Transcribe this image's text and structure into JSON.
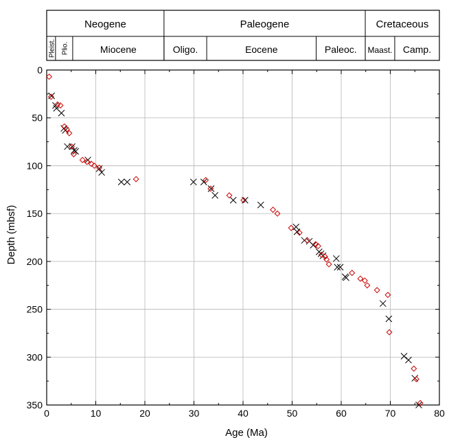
{
  "timescale": {
    "periods": [
      {
        "label": "Neogene",
        "start": 0,
        "end": 23.9
      },
      {
        "label": "Paleogene",
        "start": 23.9,
        "end": 64.9
      },
      {
        "label": "Cretaceous",
        "start": 64.9,
        "end": 80
      }
    ],
    "epochs": [
      {
        "label": "Pleist.",
        "start": 0,
        "end": 1.8,
        "rotated": true
      },
      {
        "label": "Plio.",
        "start": 1.8,
        "end": 5.3,
        "rotated": true
      },
      {
        "label": "Miocene",
        "start": 5.3,
        "end": 23.9,
        "rotated": false
      },
      {
        "label": "Oligo.",
        "start": 23.9,
        "end": 32.6,
        "rotated": false
      },
      {
        "label": "Eocene",
        "start": 32.6,
        "end": 54.9,
        "rotated": false
      },
      {
        "label": "Paleoc.",
        "start": 54.9,
        "end": 64.9,
        "rotated": false
      },
      {
        "label": "Maast.",
        "start": 64.9,
        "end": 70.9,
        "rotated": false
      },
      {
        "label": "Camp.",
        "start": 70.9,
        "end": 80,
        "rotated": false
      }
    ]
  },
  "chart_data": {
    "type": "scatter",
    "xlabel": "Age (Ma)",
    "ylabel": "Depth (mbsf)",
    "xlim": [
      0,
      80
    ],
    "ylim": [
      0,
      350
    ],
    "y_inverted": true,
    "xticks": [
      0,
      10,
      20,
      30,
      40,
      50,
      60,
      70,
      80
    ],
    "yticks": [
      0,
      50,
      100,
      150,
      200,
      250,
      300,
      350
    ],
    "grid": true,
    "series": [
      {
        "marker": "x",
        "color": "#000000",
        "points": [
          [
            1.0,
            27
          ],
          [
            1.8,
            37
          ],
          [
            2.0,
            40
          ],
          [
            3.0,
            45
          ],
          [
            3.5,
            61
          ],
          [
            3.8,
            63
          ],
          [
            4.2,
            80
          ],
          [
            5.2,
            80
          ],
          [
            5.6,
            84
          ],
          [
            5.9,
            85
          ],
          [
            8.4,
            94
          ],
          [
            10.7,
            103
          ],
          [
            11.2,
            107
          ],
          [
            15.2,
            117
          ],
          [
            16.4,
            117
          ],
          [
            29.9,
            117
          ],
          [
            32.0,
            117
          ],
          [
            33.5,
            124
          ],
          [
            34.3,
            131
          ],
          [
            38.0,
            136
          ],
          [
            40.4,
            136
          ],
          [
            43.6,
            141
          ],
          [
            50.8,
            164
          ],
          [
            51.0,
            169
          ],
          [
            52.5,
            178
          ],
          [
            53.5,
            179
          ],
          [
            54.3,
            183
          ],
          [
            55.5,
            190
          ],
          [
            55.9,
            192
          ],
          [
            56.3,
            194
          ],
          [
            59.0,
            197
          ],
          [
            59.2,
            206
          ],
          [
            59.8,
            206
          ],
          [
            60.8,
            216
          ],
          [
            61.0,
            217
          ],
          [
            68.5,
            244
          ],
          [
            69.7,
            260
          ],
          [
            72.8,
            299
          ],
          [
            73.7,
            303
          ],
          [
            75.0,
            322
          ],
          [
            75.8,
            350
          ]
        ]
      },
      {
        "marker": "diamond",
        "color": "#cc0000",
        "points": [
          [
            0.5,
            7
          ],
          [
            0.9,
            28
          ],
          [
            2.2,
            36
          ],
          [
            2.8,
            37
          ],
          [
            3.6,
            59
          ],
          [
            4.1,
            62
          ],
          [
            4.6,
            66
          ],
          [
            5.1,
            80
          ],
          [
            5.5,
            88
          ],
          [
            7.3,
            94
          ],
          [
            8.2,
            96
          ],
          [
            9.1,
            98
          ],
          [
            9.7,
            100
          ],
          [
            10.7,
            102
          ],
          [
            18.2,
            114
          ],
          [
            32.4,
            115
          ],
          [
            33.4,
            124
          ],
          [
            37.2,
            131
          ],
          [
            40.1,
            136
          ],
          [
            46.1,
            146
          ],
          [
            47.0,
            150
          ],
          [
            49.8,
            165
          ],
          [
            51.5,
            170
          ],
          [
            53.1,
            178
          ],
          [
            54.8,
            182
          ],
          [
            55.3,
            184
          ],
          [
            56.0,
            193
          ],
          [
            56.7,
            195
          ],
          [
            57.0,
            198
          ],
          [
            57.5,
            203
          ],
          [
            62.2,
            212
          ],
          [
            63.9,
            218
          ],
          [
            64.8,
            220
          ],
          [
            65.3,
            225
          ],
          [
            67.3,
            230
          ],
          [
            69.5,
            235
          ],
          [
            69.8,
            274
          ],
          [
            74.8,
            312
          ],
          [
            75.3,
            323
          ],
          [
            76.1,
            348
          ]
        ]
      }
    ]
  }
}
